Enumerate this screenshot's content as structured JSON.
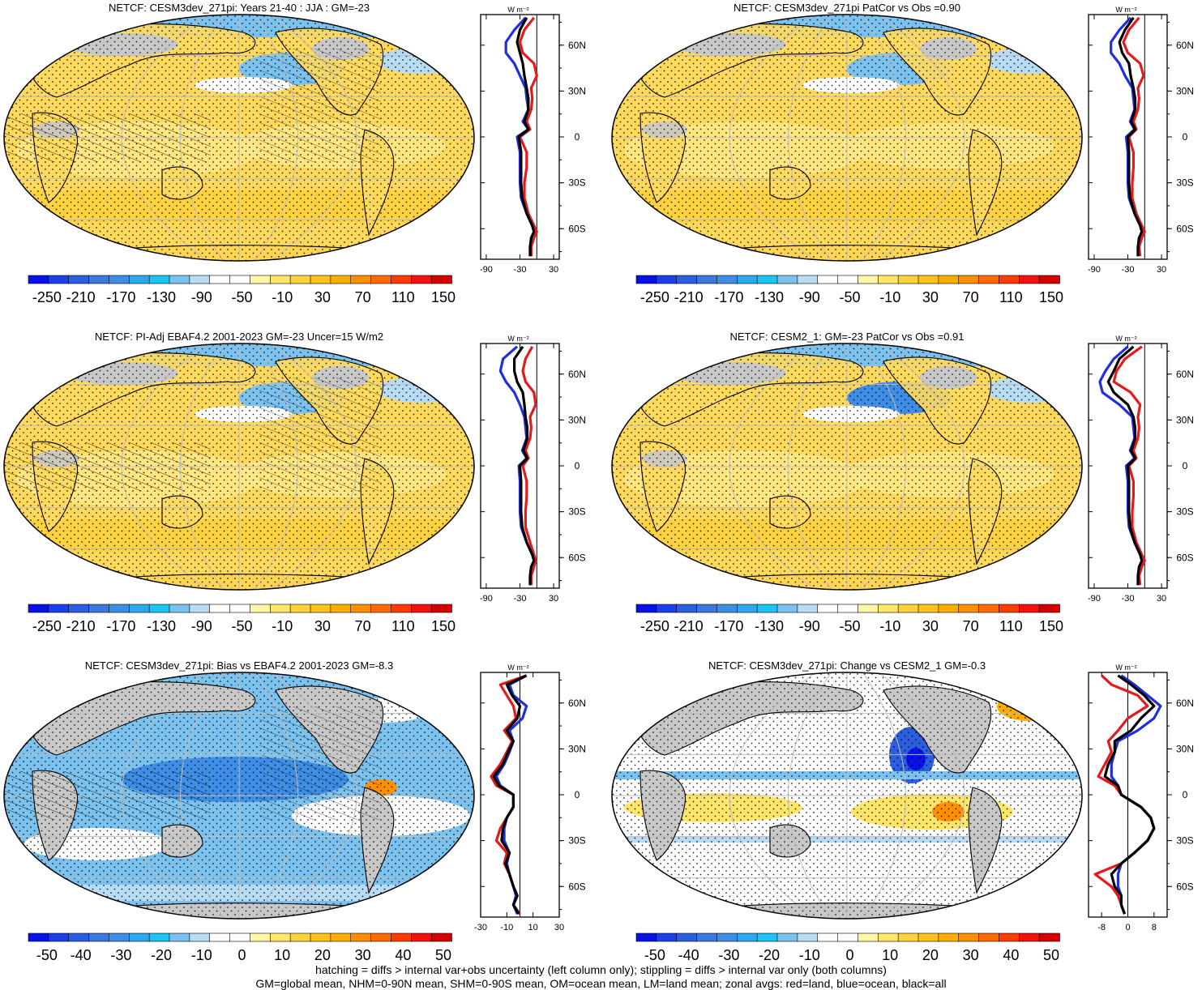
{
  "footer": {
    "line1": "hatching = diffs > internal var+obs uncertainty (left column only); stippling = diffs > internal var only (both columns)",
    "line2": "GM=global mean, NHM=0-90N mean, SHM=0-90S mean, OM=ocean mean, LM=land mean; zonal avgs: red=land, blue=ocean, black=all"
  },
  "colors": {
    "land_line": "#e41a1c",
    "ocean_line": "#1f2fe0",
    "all_line": "#000000",
    "missing": "#c8c8c8"
  },
  "palette_main": [
    "#0a12e6",
    "#1d3fe6",
    "#2b5fe0",
    "#3a78e0",
    "#3f8ee6",
    "#2ba8ee",
    "#1cc3f5",
    "#7cc2ee",
    "#b9dcf5",
    "#ffffff",
    "#ffffff",
    "#fff6a8",
    "#ffe56a",
    "#ffd23a",
    "#ffc21a",
    "#ffae00",
    "#ff8f00",
    "#ff6a00",
    "#ff3c00",
    "#f51010",
    "#d40000"
  ],
  "chart_data": [
    {
      "type": "heatmap",
      "title": "NETCF: CESM3dev_271pi: Years 21-40 : JJA : GM=-23",
      "colorbar_ticks": [
        "-250",
        "-210",
        "-170",
        "-130",
        "-90",
        "-50",
        "-10",
        "30",
        "70",
        "110",
        "150"
      ],
      "profile": {
        "type": "line",
        "units": "W m⁻²",
        "xticks": [
          "-90",
          "-30",
          "30"
        ],
        "xlim": [
          -100,
          40
        ],
        "yticks": [
          "60N",
          "30N",
          "0",
          "30S",
          "60S"
        ],
        "ylim": [
          -80,
          80
        ],
        "lat": [
          78,
          70,
          62,
          55,
          48,
          40,
          32,
          25,
          18,
          10,
          5,
          0,
          -10,
          -20,
          -30,
          -40,
          -50,
          -58,
          -62,
          -66,
          -72,
          -78
        ],
        "series": [
          {
            "name": "land",
            "values": [
              -5,
              -22,
              -30,
              -25,
              -5,
              0,
              -10,
              -8,
              -10,
              -18,
              -12,
              -30,
              -18,
              -18,
              -22,
              -22,
              -15,
              -5,
              0,
              -5,
              -10,
              -10
            ]
          },
          {
            "name": "ocean",
            "values": [
              -20,
              -40,
              -55,
              -55,
              -40,
              -30,
              -20,
              -18,
              -15,
              -25,
              -15,
              -35,
              -30,
              -30,
              -30,
              -28,
              -18,
              -8,
              -5,
              -10,
              -12,
              -12
            ]
          },
          {
            "name": "all",
            "values": [
              -18,
              -30,
              -35,
              -30,
              -25,
              -22,
              -18,
              -15,
              -15,
              -22,
              -15,
              -32,
              -28,
              -28,
              -28,
              -26,
              -18,
              -8,
              -5,
              -10,
              -12,
              -12
            ]
          }
        ]
      }
    },
    {
      "type": "heatmap",
      "title": "NETCF: CESM3dev_271pi PatCor vs Obs =0.90",
      "colorbar_ticks": [
        "-250",
        "-210",
        "-170",
        "-130",
        "-90",
        "-50",
        "-10",
        "30",
        "70",
        "110",
        "150"
      ],
      "profile": {
        "type": "line",
        "units": "W m⁻²",
        "xticks": [
          "-90",
          "-30",
          "30"
        ],
        "xlim": [
          -100,
          40
        ],
        "yticks": [
          "60N",
          "30N",
          "0",
          "30S",
          "60S"
        ],
        "ylim": [
          -80,
          80
        ],
        "lat": [
          78,
          70,
          62,
          55,
          48,
          40,
          32,
          25,
          18,
          10,
          5,
          0,
          -10,
          -20,
          -30,
          -40,
          -50,
          -58,
          -62,
          -66,
          -72,
          -78
        ],
        "series": [
          {
            "name": "land",
            "values": [
              -10,
              -28,
              -38,
              -30,
              -8,
              -2,
              -12,
              -10,
              -12,
              -20,
              -15,
              -28,
              -20,
              -20,
              -22,
              -22,
              -15,
              -5,
              0,
              -5,
              -10,
              -8
            ]
          },
          {
            "name": "ocean",
            "values": [
              -25,
              -45,
              -60,
              -60,
              -45,
              -35,
              -22,
              -20,
              -18,
              -26,
              -18,
              -33,
              -30,
              -30,
              -30,
              -28,
              -18,
              -8,
              -5,
              -10,
              -12,
              -12
            ]
          },
          {
            "name": "all",
            "values": [
              -20,
              -35,
              -45,
              -40,
              -28,
              -25,
              -20,
              -17,
              -17,
              -24,
              -17,
              -30,
              -28,
              -28,
              -28,
              -26,
              -18,
              -8,
              -5,
              -10,
              -12,
              -12
            ]
          }
        ]
      }
    },
    {
      "type": "heatmap",
      "title": "NETCF: PI-Adj EBAF4.2 2001-2023 GM=-23 Uncer=15 W/m2",
      "colorbar_ticks": [
        "-250",
        "-210",
        "-170",
        "-130",
        "-90",
        "-50",
        "-10",
        "30",
        "70",
        "110",
        "150"
      ],
      "profile": {
        "type": "line",
        "units": "W m⁻²",
        "xticks": [
          "-90",
          "-30",
          "30"
        ],
        "xlim": [
          -100,
          40
        ],
        "yticks": [
          "60N",
          "30N",
          "0",
          "30S",
          "60S"
        ],
        "ylim": [
          -80,
          80
        ],
        "lat": [
          78,
          70,
          62,
          55,
          48,
          40,
          32,
          25,
          18,
          10,
          5,
          0,
          -10,
          -20,
          -30,
          -40,
          -50,
          -58,
          -62,
          -66,
          -72,
          -78
        ],
        "series": [
          {
            "name": "land",
            "values": [
              -8,
              -20,
              -25,
              -20,
              -5,
              -2,
              -12,
              -10,
              -12,
              -20,
              -15,
              -25,
              -18,
              -18,
              -20,
              -20,
              -12,
              -5,
              -2,
              -5,
              -10,
              -10
            ]
          },
          {
            "name": "ocean",
            "values": [
              -35,
              -60,
              -65,
              -55,
              -40,
              -30,
              -22,
              -20,
              -18,
              -26,
              -18,
              -32,
              -30,
              -30,
              -30,
              -28,
              -18,
              -8,
              -5,
              -10,
              -12,
              -12
            ]
          },
          {
            "name": "all",
            "values": [
              -25,
              -40,
              -40,
              -35,
              -25,
              -22,
              -20,
              -17,
              -17,
              -24,
              -17,
              -30,
              -28,
              -28,
              -28,
              -26,
              -18,
              -8,
              -5,
              -10,
              -12,
              -12
            ]
          }
        ]
      }
    },
    {
      "type": "heatmap",
      "title": "NETCF: CESM2_1: GM=-23 PatCor vs Obs =0.91",
      "colorbar_ticks": [
        "-250",
        "-210",
        "-170",
        "-130",
        "-90",
        "-50",
        "-10",
        "30",
        "70",
        "110",
        "150"
      ],
      "profile": {
        "type": "line",
        "units": "W m⁻²",
        "xticks": [
          "-90",
          "-30",
          "30"
        ],
        "xlim": [
          -100,
          40
        ],
        "yticks": [
          "60N",
          "30N",
          "0",
          "30S",
          "60S"
        ],
        "ylim": [
          -80,
          80
        ],
        "lat": [
          78,
          70,
          62,
          55,
          48,
          40,
          32,
          25,
          18,
          10,
          5,
          0,
          -10,
          -20,
          -30,
          -40,
          -50,
          -58,
          -62,
          -66,
          -72,
          -78
        ],
        "series": [
          {
            "name": "land",
            "values": [
              -5,
              -35,
              -50,
              -55,
              -25,
              -8,
              -12,
              -10,
              -12,
              -20,
              -15,
              -28,
              -20,
              -20,
              -22,
              -22,
              -15,
              -5,
              0,
              -5,
              -10,
              -8
            ]
          },
          {
            "name": "ocean",
            "values": [
              -30,
              -55,
              -70,
              -80,
              -75,
              -45,
              -22,
              -20,
              -18,
              -26,
              -18,
              -33,
              -30,
              -30,
              -30,
              -28,
              -18,
              -8,
              -5,
              -10,
              -12,
              -12
            ]
          },
          {
            "name": "all",
            "values": [
              -20,
              -45,
              -55,
              -65,
              -55,
              -30,
              -20,
              -17,
              -17,
              -24,
              -17,
              -30,
              -28,
              -28,
              -28,
              -26,
              -18,
              -8,
              -5,
              -10,
              -12,
              -12
            ]
          }
        ]
      }
    },
    {
      "type": "heatmap",
      "title": "NETCF: CESM3dev_271pi: Bias vs EBAF4.2 2001-2023 GM=-8.3",
      "colorbar_ticks": [
        "-50",
        "-40",
        "-30",
        "-20",
        "-10",
        "0",
        "10",
        "20",
        "30",
        "40",
        "50"
      ],
      "profile": {
        "type": "line",
        "units": "W m⁻²",
        "xticks": [
          "-30",
          "-10",
          "10",
          "30"
        ],
        "xlim": [
          -30,
          30
        ],
        "yticks": [
          "60N",
          "30N",
          "0",
          "30S",
          "60S"
        ],
        "ylim": [
          -80,
          80
        ],
        "lat": [
          78,
          72,
          65,
          58,
          50,
          42,
          35,
          28,
          20,
          12,
          6,
          0,
          -8,
          -15,
          -22,
          -30,
          -38,
          -45,
          -52,
          -60,
          -66,
          -72,
          -78
        ],
        "series": [
          {
            "name": "land",
            "values": [
              5,
              -15,
              -10,
              -5,
              -3,
              -12,
              -6,
              -10,
              -15,
              -22,
              -18,
              -5,
              -5,
              -10,
              -15,
              -18,
              -10,
              -12,
              -8,
              -5,
              -2,
              -5,
              0
            ]
          },
          {
            "name": "ocean",
            "values": [
              5,
              -8,
              -5,
              5,
              2,
              -8,
              -5,
              -8,
              -12,
              -18,
              -15,
              -5,
              -5,
              -10,
              -12,
              -12,
              -8,
              -10,
              -8,
              -5,
              -3,
              -5,
              -2
            ]
          },
          {
            "name": "all",
            "values": [
              5,
              -10,
              -6,
              0,
              -2,
              -10,
              -5,
              -9,
              -13,
              -20,
              -16,
              -5,
              -5,
              -10,
              -13,
              -14,
              -8,
              -11,
              -8,
              -5,
              -2,
              -5,
              -1
            ]
          }
        ]
      }
    },
    {
      "type": "heatmap",
      "title": "NETCF: CESM3dev_271pi: Change vs CESM2_1 GM=-0.3",
      "colorbar_ticks": [
        "-50",
        "-40",
        "-30",
        "-20",
        "-10",
        "0",
        "10",
        "20",
        "30",
        "40",
        "50"
      ],
      "profile": {
        "type": "line",
        "units": "W m⁻²",
        "xticks": [
          "-8",
          "0",
          "8"
        ],
        "xlim": [
          -12,
          12
        ],
        "yticks": [
          "60N",
          "30N",
          "0",
          "30S",
          "60S"
        ],
        "ylim": [
          -80,
          80
        ],
        "lat": [
          78,
          72,
          65,
          58,
          50,
          42,
          35,
          28,
          20,
          12,
          6,
          0,
          -8,
          -15,
          -22,
          -30,
          -38,
          -45,
          -52,
          -60,
          -66,
          -72,
          -78
        ],
        "series": [
          {
            "name": "land",
            "values": [
              -8,
              -5,
              3,
              6,
              0,
              -3,
              -6,
              -5,
              -7,
              -9,
              -4,
              -2,
              4,
              7,
              8,
              6,
              2,
              -2,
              -10,
              -5,
              -3,
              -2,
              -1
            ]
          },
          {
            "name": "ocean",
            "values": [
              -2,
              2,
              6,
              10,
              8,
              3,
              -3,
              -4,
              -5,
              -5,
              -3,
              -2,
              4,
              7,
              8,
              6,
              2,
              -2,
              -3,
              -3,
              -2,
              -2,
              -1
            ]
          },
          {
            "name": "all",
            "values": [
              -3,
              1,
              5,
              8,
              4,
              1,
              -4,
              -4,
              -6,
              -7,
              -3,
              -2,
              4,
              7,
              8,
              6,
              2,
              -2,
              -5,
              -4,
              -2,
              -2,
              -1
            ]
          }
        ]
      }
    }
  ]
}
